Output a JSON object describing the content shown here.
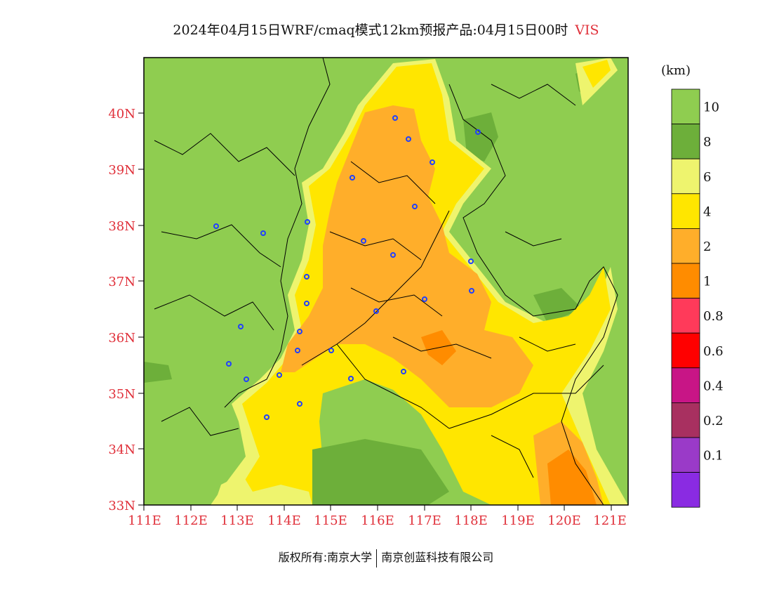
{
  "title": {
    "main": "2024年04月15日WRF/cmaq模式12km预报产品:04月15日00时",
    "variable": "VIS"
  },
  "axes": {
    "lat_labels": [
      "40N",
      "39N",
      "38N",
      "37N",
      "36N",
      "35N",
      "34N",
      "33N"
    ],
    "lon_labels": [
      "111E",
      "112E",
      "113E",
      "114E",
      "115E",
      "116E",
      "117E",
      "118E",
      "119E",
      "120E",
      "121E"
    ]
  },
  "colorbar": {
    "unit": "(km)",
    "labels": [
      "10",
      "8",
      "6",
      "4",
      "2",
      "1",
      "0.8",
      "0.6",
      "0.4",
      "0.2",
      "0.1"
    ],
    "colors": [
      "#8fcd50",
      "#6daf3a",
      "#eef46e",
      "#ffe600",
      "#ffae2a",
      "#ff8c00",
      "#ff3a5a",
      "#ff0000",
      "#c81586",
      "#a83060",
      "#9a3ac8",
      "#8a2be2"
    ]
  },
  "footer": {
    "left": "版权所有:南京大学",
    "right": "南京创蓝科技有限公司"
  },
  "colors": {
    "green": "#8fcd50",
    "dark_green": "#6daf3a",
    "light_yellow": "#eef46e",
    "yellow": "#ffe600",
    "orange": "#ffae2a",
    "dark_orange": "#ff8c00",
    "label_red": "#e0303a",
    "marker_blue": "#2040ff"
  }
}
